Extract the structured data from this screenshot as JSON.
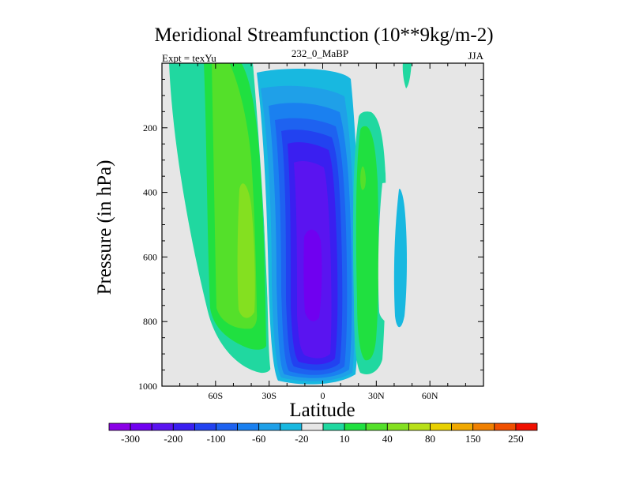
{
  "chart_data": {
    "type": "heatmap",
    "title": "Meridional Streamfunction (10**9kg/m-2)",
    "subtitle_left": "Expt = texYu",
    "subtitle_center": "232_0_MaBP",
    "subtitle_right": "JJA",
    "xlabel": "Latitude",
    "ylabel": "Pressure (in hPa)",
    "xlim": [
      -90,
      90
    ],
    "ylim": [
      0,
      1000
    ],
    "y_reversed": true,
    "grid": false,
    "x_ticks": [
      {
        "value": -60,
        "label": "60S"
      },
      {
        "value": -30,
        "label": "30S"
      },
      {
        "value": 0,
        "label": "0"
      },
      {
        "value": 30,
        "label": "30N"
      },
      {
        "value": 60,
        "label": "60N"
      }
    ],
    "y_ticks": [
      {
        "value": 200,
        "label": "200"
      },
      {
        "value": 400,
        "label": "400"
      },
      {
        "value": 600,
        "label": "600"
      },
      {
        "value": 800,
        "label": "800"
      },
      {
        "value": 1000,
        "label": "1000"
      }
    ],
    "background_color": "#e6e6e6",
    "levels": [
      -300,
      -250,
      -200,
      -150,
      -100,
      -80,
      -60,
      -40,
      -20,
      -10,
      10,
      20,
      40,
      60,
      80,
      100,
      150,
      200,
      250,
      300
    ],
    "level_labels": [
      "-300",
      "-200",
      "-100",
      "-60",
      "-20",
      "10",
      "40",
      "80",
      "150",
      "250"
    ],
    "colors": [
      "#8a00e6",
      "#7000f0",
      "#5a14f0",
      "#3a1ff0",
      "#2242f0",
      "#1e62f0",
      "#1a80f0",
      "#1fa0e8",
      "#18b8e0",
      "#e6e6e6",
      "#20d8a0",
      "#20e040",
      "#54e02a",
      "#84e020",
      "#b8e018",
      "#e8d000",
      "#f0a800",
      "#f08000",
      "#f05000",
      "#f01000"
    ],
    "features": [
      {
        "name": "southern-hemisphere-positive-cell",
        "levels": [
          10,
          20,
          40,
          60
        ],
        "center": [
          -43,
          650
        ],
        "value_range": [
          10,
          80
        ]
      },
      {
        "name": "equatorial-negative-cell",
        "levels": [
          -10,
          -20,
          -40,
          -60,
          -80,
          -100,
          -150,
          -200,
          -250
        ],
        "center": [
          -1,
          550
        ],
        "value_range": [
          -300,
          -10
        ]
      },
      {
        "name": "northern-subtropical-positive-cell",
        "levels": [
          10,
          20,
          40
        ],
        "center": [
          26,
          350
        ],
        "value_range": [
          10,
          60
        ]
      },
      {
        "name": "northern-midlatitude-negative-cell",
        "levels": [
          -10
        ],
        "center": [
          46,
          600
        ],
        "value_range": [
          -20,
          -10
        ]
      },
      {
        "name": "upper-level-positive-patch",
        "levels": [
          10
        ],
        "center": [
          48,
          30
        ],
        "value_range": [
          10,
          20
        ]
      }
    ]
  }
}
